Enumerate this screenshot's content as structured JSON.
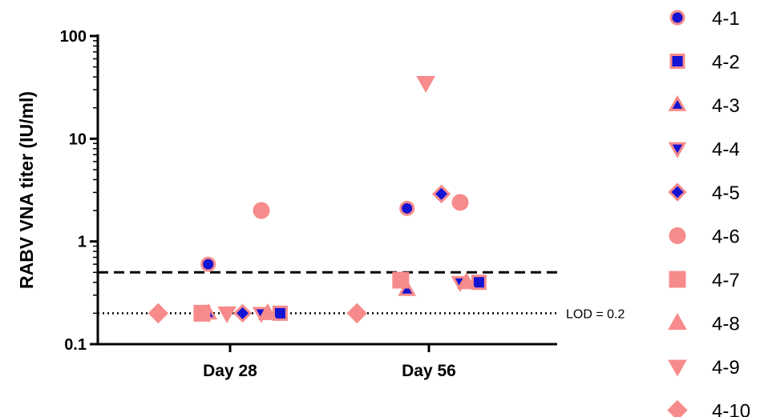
{
  "chart_data": {
    "type": "scatter",
    "title": "",
    "xlabel": "",
    "ylabel": "RABV VNA titer (IU/ml)",
    "categories": [
      "Day 28",
      "Day 56"
    ],
    "yscale": "log",
    "ylim": [
      0.1,
      100
    ],
    "yticks": [
      0.1,
      1,
      10,
      100
    ],
    "ytick_labels": [
      "0.1",
      "1",
      "10",
      "100"
    ],
    "grid": false,
    "legend_position": "right",
    "reference_lines": [
      {
        "value": 0.5,
        "style": "dashed",
        "label": ""
      },
      {
        "value": 0.2,
        "style": "dotted",
        "label": "LOD = 0.2"
      }
    ],
    "colors": {
      "pink": "#f78b8b",
      "blue": "#1414d2"
    },
    "series": [
      {
        "name": "4-1",
        "marker": "circle",
        "style": "outlined",
        "values": [
          0.6,
          2.1
        ]
      },
      {
        "name": "4-2",
        "marker": "square",
        "style": "outlined",
        "values": [
          0.2,
          0.4
        ]
      },
      {
        "name": "4-3",
        "marker": "triangle-up",
        "style": "outlined",
        "values": [
          0.2,
          0.34
        ]
      },
      {
        "name": "4-4",
        "marker": "triangle-down",
        "style": "outlined",
        "values": [
          0.2,
          0.4
        ]
      },
      {
        "name": "4-5",
        "marker": "diamond",
        "style": "outlined",
        "values": [
          0.2,
          2.9
        ]
      },
      {
        "name": "4-6",
        "marker": "circle",
        "style": "solid",
        "values": [
          2.0,
          2.4
        ]
      },
      {
        "name": "4-7",
        "marker": "square",
        "style": "solid",
        "values": [
          0.2,
          0.42
        ]
      },
      {
        "name": "4-8",
        "marker": "triangle-up",
        "style": "solid",
        "values": [
          0.2,
          0.4
        ]
      },
      {
        "name": "4-9",
        "marker": "triangle-down",
        "style": "solid",
        "values": [
          0.2,
          35
        ]
      },
      {
        "name": "4-10",
        "marker": "diamond",
        "style": "solid",
        "values": [
          0.2,
          0.2
        ]
      }
    ]
  }
}
